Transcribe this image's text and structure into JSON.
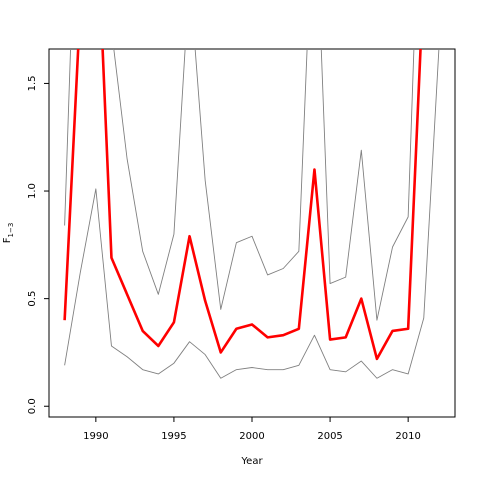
{
  "chart_data": {
    "type": "line",
    "title": "",
    "xlabel": "Year",
    "ylabel": "F",
    "ylabel_subscript": "1−3",
    "xlim": [
      1987,
      2013
    ],
    "ylim": [
      -0.05,
      1.66
    ],
    "x_ticks": [
      1990,
      1995,
      2000,
      2005,
      2010
    ],
    "x_tick_labels": [
      "1990",
      "1995",
      "2000",
      "2005",
      "2010"
    ],
    "y_ticks": [
      0.0,
      0.5,
      1.0,
      1.5
    ],
    "y_tick_labels": [
      "0.0",
      "0.5",
      "1.0",
      "1.5"
    ],
    "grid": false,
    "x": [
      1988,
      1989,
      1990,
      1991,
      1992,
      1993,
      1994,
      1995,
      1996,
      1997,
      1998,
      1999,
      2000,
      2001,
      2002,
      2003,
      2004,
      2005,
      2006,
      2007,
      2008,
      2009,
      2010,
      2011,
      2012
    ],
    "series": [
      {
        "role": "estimate",
        "color": "#ff0000",
        "values": [
          0.4,
          1.85,
          2.4,
          0.69,
          0.52,
          0.35,
          0.28,
          0.39,
          0.79,
          0.49,
          0.25,
          0.36,
          0.38,
          0.32,
          0.33,
          0.36,
          1.1,
          0.31,
          0.32,
          0.5,
          0.22,
          0.35,
          0.36,
          2.0,
          null
        ]
      },
      {
        "role": "upper",
        "color": "#808080",
        "values": [
          0.84,
          3.0,
          3.0,
          1.75,
          1.15,
          0.72,
          0.52,
          0.8,
          2.0,
          1.05,
          0.45,
          0.76,
          0.79,
          0.61,
          0.64,
          0.72,
          2.5,
          0.57,
          0.6,
          1.19,
          0.4,
          0.74,
          0.88,
          3.0,
          null
        ]
      },
      {
        "role": "lower",
        "color": "#808080",
        "values": [
          0.19,
          0.62,
          1.01,
          0.28,
          0.23,
          0.17,
          0.15,
          0.2,
          0.3,
          0.24,
          0.13,
          0.17,
          0.18,
          0.17,
          0.17,
          0.19,
          0.33,
          0.17,
          0.16,
          0.21,
          0.13,
          0.17,
          0.15,
          0.41,
          1.7
        ]
      }
    ]
  }
}
